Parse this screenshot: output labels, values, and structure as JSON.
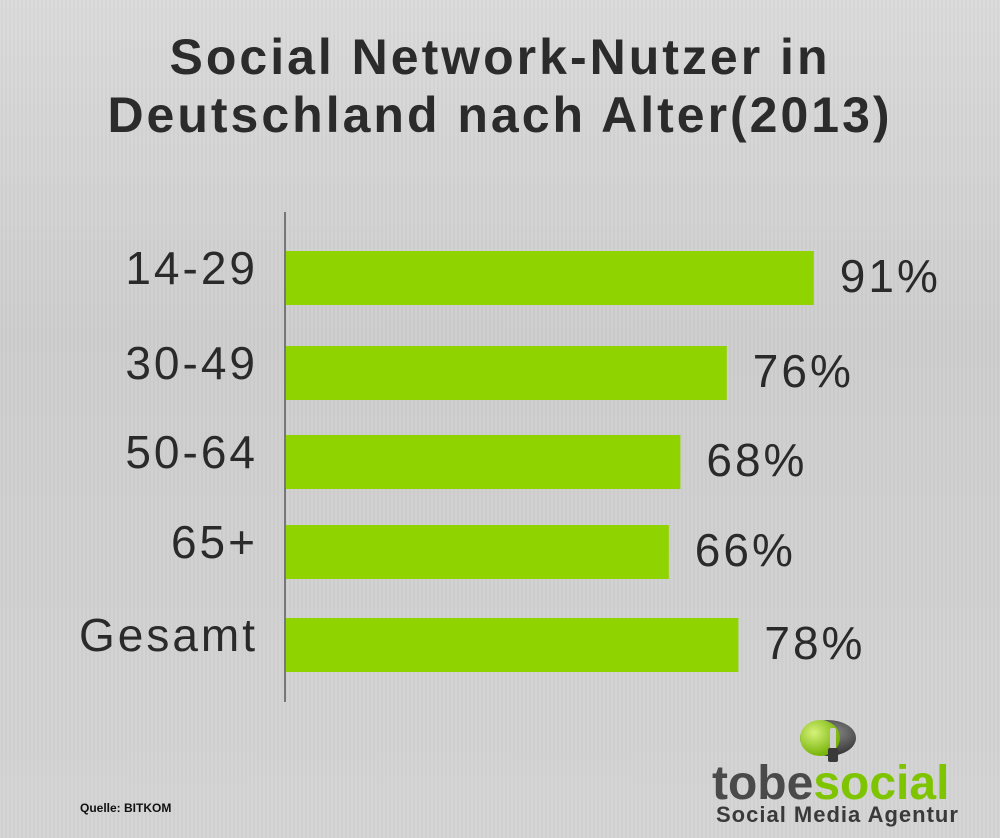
{
  "title": {
    "line1": "Social Network-Nutzer in",
    "line2": "Deutschland nach Alter(2013)"
  },
  "chart_data": {
    "type": "bar",
    "orientation": "horizontal",
    "categories": [
      "14-29",
      "30-49",
      "50-64",
      "65+",
      "Gesamt"
    ],
    "values": [
      91,
      76,
      68,
      66,
      78
    ],
    "value_labels": [
      "91%",
      "76%",
      "68%",
      "66%",
      "78%"
    ],
    "bar_color": "#8fd400",
    "axis_color": "#777777",
    "xlim": [
      0,
      100
    ],
    "grid": false,
    "legend": "none"
  },
  "source": "Quelle: BITKOM",
  "logo": {
    "word_part1": "tobe",
    "word_part2": "social",
    "tagline": "Social Media Agentur",
    "icon": "toggle-switch-icon",
    "colors": {
      "dark": "#4a4a4a",
      "green": "#7fc400"
    }
  }
}
